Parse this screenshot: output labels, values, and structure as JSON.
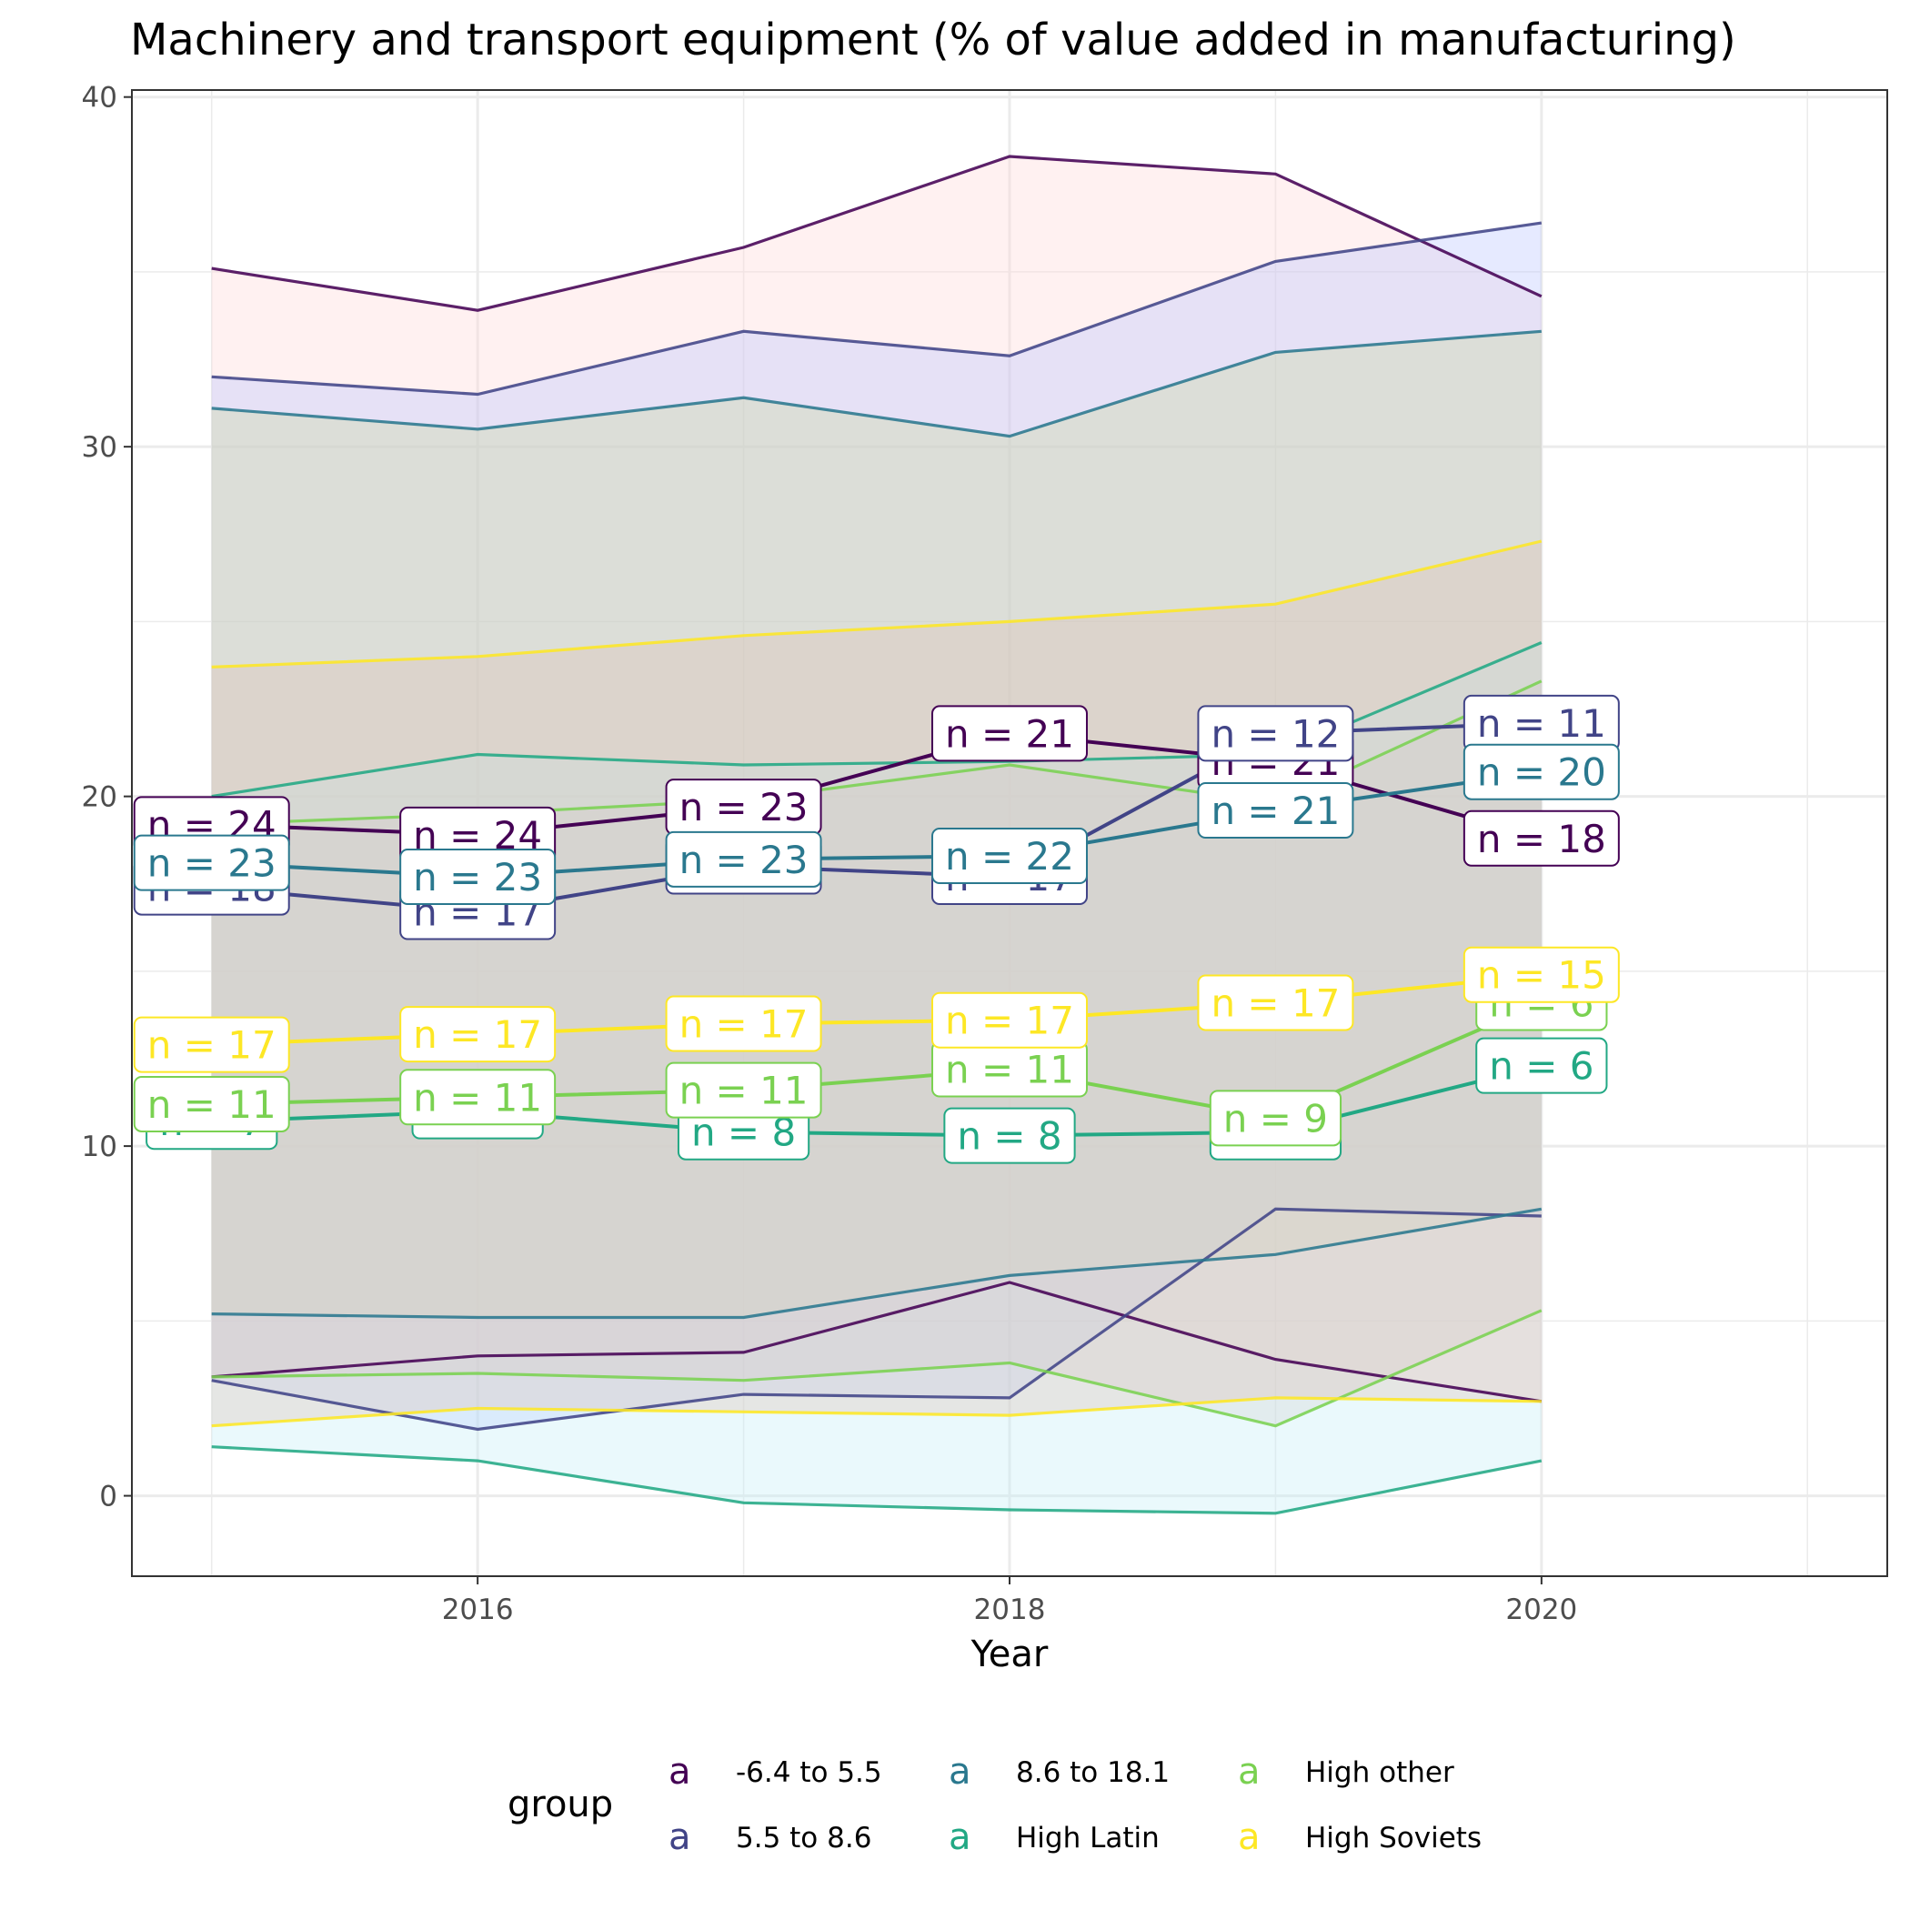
{
  "chart_data": {
    "type": "line",
    "title": "Machinery and transport equipment (% of value added in manufacturing)",
    "xlabel": "Year",
    "ylabel": "",
    "x": [
      2015,
      2016,
      2017,
      2018,
      2019,
      2020
    ],
    "xlim": [
      2014.7,
      2021.3
    ],
    "ylim": [
      -2.3,
      40.2
    ],
    "xticks": [
      2016,
      2018,
      2020
    ],
    "yticks": [
      0,
      10,
      20,
      30,
      40
    ],
    "grid": true,
    "legend": {
      "title": "group",
      "position": "bottom",
      "key_glyph": "a"
    },
    "series": [
      {
        "name": "-6.4 to 5.5",
        "color": "#440154",
        "ribbon_color": "#ffd6d6",
        "mean": [
          19.2,
          18.9,
          19.7,
          21.8,
          21.0,
          18.8
        ],
        "upper": [
          35.1,
          33.9,
          35.7,
          38.3,
          37.8,
          34.3
        ],
        "lower": [
          3.4,
          4.0,
          4.1,
          6.1,
          3.9,
          2.7
        ],
        "n_labels": [
          "n = 24",
          "n = 24",
          "n = 23",
          "n = 21",
          "n = 21",
          "n = 18"
        ]
      },
      {
        "name": "5.5 to 8.6",
        "color": "#414487",
        "ribbon_color": "#b7c4ff",
        "mean": [
          17.4,
          16.7,
          18.0,
          17.7,
          21.8,
          22.1
        ],
        "upper": [
          32.0,
          31.5,
          33.3,
          32.6,
          35.3,
          36.4
        ],
        "lower": [
          3.3,
          1.9,
          2.9,
          2.8,
          8.2,
          8.0
        ],
        "n_labels": [
          "n = 18",
          "n = 17",
          "n = 18",
          "n = 17",
          "n = 12",
          "n = 11"
        ]
      },
      {
        "name": "8.6 to 18.1",
        "color": "#2a788e",
        "ribbon_color": "#c8d9a0",
        "mean": [
          18.1,
          17.7,
          18.2,
          18.3,
          19.6,
          20.7
        ],
        "upper": [
          31.1,
          30.5,
          31.4,
          30.3,
          32.7,
          33.3
        ],
        "lower": [
          5.2,
          5.1,
          5.1,
          6.3,
          6.9,
          8.2
        ],
        "n_labels": [
          "n = 23",
          "n = 23",
          "n = 23",
          "n = 22",
          "n = 21",
          "n = 20"
        ]
      },
      {
        "name": "High Latin",
        "color": "#22a884",
        "ribbon_color": "#c4eef5",
        "mean": [
          10.7,
          11.0,
          10.4,
          10.3,
          10.4,
          12.3
        ],
        "upper": [
          20.0,
          21.2,
          20.9,
          21.0,
          21.2,
          24.4
        ],
        "lower": [
          1.4,
          1.0,
          -0.2,
          -0.4,
          -0.5,
          1.0
        ],
        "n_labels": [
          "n = 7",
          "n = 7",
          "n = 8",
          "n = 8",
          "n = 8",
          "n = 6"
        ]
      },
      {
        "name": "High other",
        "color": "#7ad151",
        "ribbon_color": "#d3d3d3",
        "mean": [
          11.2,
          11.4,
          11.6,
          12.2,
          10.8,
          14.1
        ],
        "upper": [
          19.2,
          19.5,
          19.9,
          20.9,
          19.8,
          23.3
        ],
        "lower": [
          3.4,
          3.5,
          3.3,
          3.8,
          2.0,
          5.3
        ],
        "n_labels": [
          "n = 11",
          "n = 11",
          "n = 11",
          "n = 11",
          "n = 9",
          "n = 6"
        ]
      },
      {
        "name": "High Soviets",
        "color": "#fde725",
        "ribbon_color": "#ddc2b8",
        "mean": [
          12.9,
          13.2,
          13.5,
          13.6,
          14.1,
          14.9
        ],
        "upper": [
          23.7,
          24.0,
          24.6,
          25.0,
          25.5,
          27.3
        ],
        "lower": [
          2.0,
          2.5,
          2.4,
          2.3,
          2.8,
          2.7
        ],
        "n_labels": [
          "n = 17",
          "n = 17",
          "n = 17",
          "n = 17",
          "n = 17",
          "n = 15"
        ]
      }
    ]
  }
}
